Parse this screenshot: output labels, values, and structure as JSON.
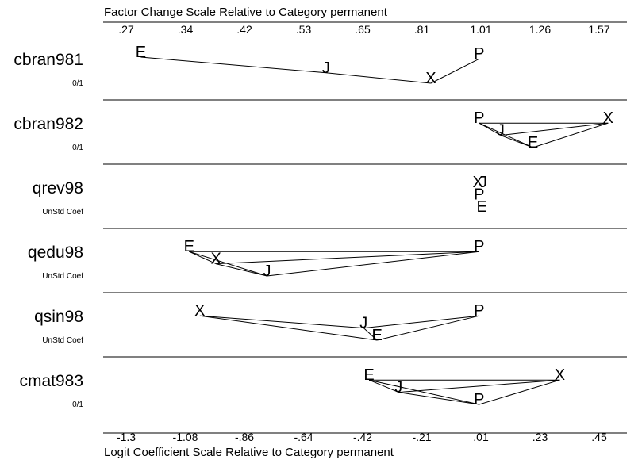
{
  "chart_data": {
    "type": "scatter",
    "top_axis_title": "Factor Change Scale Relative to Category permanent",
    "bottom_axis_title": "Logit Coefficient Scale Relative to Category permanent",
    "top_ticks": [
      ".27",
      ".34",
      ".42",
      ".53",
      ".65",
      ".81",
      "1.01",
      "1.26",
      "1.57"
    ],
    "bottom_ticks": [
      "-1.3",
      "-1.08",
      "-.86",
      "-.64",
      "-.42",
      "-.21",
      ".01",
      ".23",
      ".45"
    ],
    "xlim": [
      -1.4,
      0.55
    ],
    "variables": [
      {
        "name": "cbran981",
        "sub": "0/1",
        "points": [
          {
            "label": "E",
            "x": -1.26,
            "level": 0.0
          },
          {
            "label": "J",
            "x": -0.57,
            "level": 0.45
          },
          {
            "label": "X",
            "x": -0.18,
            "level": 0.75
          },
          {
            "label": "P",
            "x": 0.0,
            "level": 0.05
          }
        ],
        "links": [
          [
            "E",
            "J"
          ],
          [
            "J",
            "X"
          ],
          [
            "X",
            "P"
          ]
        ]
      },
      {
        "name": "cbran982",
        "sub": "0/1",
        "points": [
          {
            "label": "P",
            "x": 0.0,
            "level": 0.05
          },
          {
            "label": "J",
            "x": 0.08,
            "level": 0.4
          },
          {
            "label": "E",
            "x": 0.2,
            "level": 0.75
          },
          {
            "label": "X",
            "x": 0.48,
            "level": 0.05
          }
        ],
        "links": [
          [
            "P",
            "J"
          ],
          [
            "P",
            "E"
          ],
          [
            "P",
            "X"
          ],
          [
            "J",
            "E"
          ],
          [
            "J",
            "X"
          ],
          [
            "E",
            "X"
          ]
        ]
      },
      {
        "name": "qrev98",
        "sub": "UnStd Coef",
        "points": [
          {
            "label": "X",
            "x": -0.005,
            "level": 0.05
          },
          {
            "label": "J",
            "x": 0.015,
            "level": 0.05
          },
          {
            "label": "P",
            "x": 0.0,
            "level": 0.4
          },
          {
            "label": "E",
            "x": 0.01,
            "level": 0.75
          }
        ],
        "links": []
      },
      {
        "name": "qedu98",
        "sub": "UnStd Coef",
        "points": [
          {
            "label": "E",
            "x": -1.08,
            "level": 0.05
          },
          {
            "label": "X",
            "x": -0.98,
            "level": 0.4
          },
          {
            "label": "J",
            "x": -0.79,
            "level": 0.75
          },
          {
            "label": "P",
            "x": 0.0,
            "level": 0.05
          }
        ],
        "links": [
          [
            "E",
            "X"
          ],
          [
            "E",
            "J"
          ],
          [
            "E",
            "P"
          ],
          [
            "X",
            "J"
          ],
          [
            "X",
            "P"
          ],
          [
            "J",
            "P"
          ]
        ]
      },
      {
        "name": "qsin98",
        "sub": "UnStd Coef",
        "points": [
          {
            "label": "X",
            "x": -1.04,
            "level": 0.05
          },
          {
            "label": "J",
            "x": -0.43,
            "level": 0.4
          },
          {
            "label": "E",
            "x": -0.38,
            "level": 0.75
          },
          {
            "label": "P",
            "x": 0.0,
            "level": 0.05
          }
        ],
        "links": [
          [
            "X",
            "J"
          ],
          [
            "X",
            "E"
          ],
          [
            "J",
            "E"
          ],
          [
            "J",
            "P"
          ],
          [
            "E",
            "P"
          ]
        ]
      },
      {
        "name": "cmat983",
        "sub": "0/1",
        "points": [
          {
            "label": "E",
            "x": -0.41,
            "level": 0.05
          },
          {
            "label": "J",
            "x": -0.3,
            "level": 0.4
          },
          {
            "label": "P",
            "x": 0.0,
            "level": 0.75
          },
          {
            "label": "X",
            "x": 0.3,
            "level": 0.05
          }
        ],
        "links": [
          [
            "E",
            "J"
          ],
          [
            "E",
            "P"
          ],
          [
            "E",
            "X"
          ],
          [
            "J",
            "P"
          ],
          [
            "J",
            "X"
          ],
          [
            "P",
            "X"
          ]
        ]
      }
    ]
  }
}
